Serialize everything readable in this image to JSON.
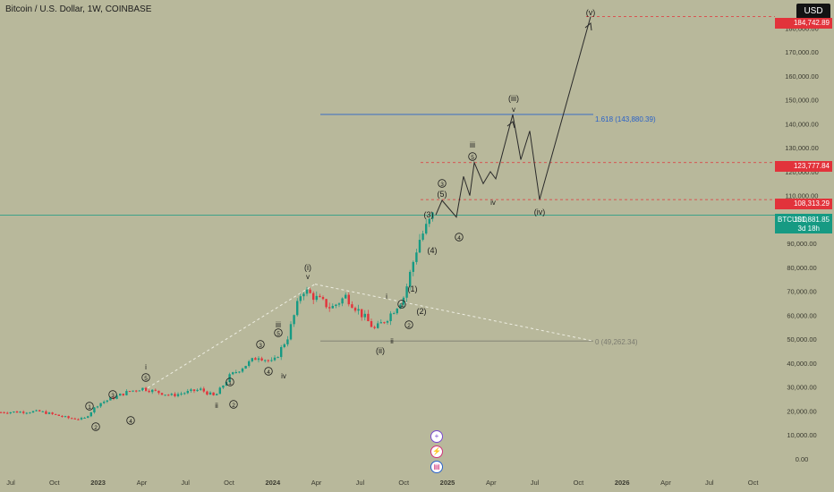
{
  "header": {
    "title": "Bitcoin / U.S. Dollar, 1W, COINBASE",
    "currency_button": "USD"
  },
  "chart_data": {
    "type": "line",
    "title": "Bitcoin / U.S. Dollar, 1W, COINBASE",
    "ylim": [
      0,
      190000
    ],
    "y_ticks": [
      "180,000.00",
      "170,000.00",
      "160,000.00",
      "150,000.00",
      "140,000.00",
      "130,000.00",
      "120,000.00",
      "110,000.00",
      "100,000.00",
      "90,000.00",
      "80,000.00",
      "70,000.00",
      "60,000.00",
      "50,000.00",
      "40,000.00",
      "30,000.00",
      "20,000.00",
      "10,000.00",
      "0.00"
    ],
    "x_ticks": [
      "Jul",
      "Oct",
      "2023",
      "Apr",
      "Jul",
      "Oct",
      "2024",
      "Apr",
      "Jul",
      "Oct",
      "2025",
      "Apr",
      "Jul",
      "Oct",
      "2026",
      "Apr",
      "Jul",
      "Oct"
    ],
    "price_series": [
      {
        "x": "2022-06",
        "y": 19500
      },
      {
        "x": "2022-09",
        "y": 19800
      },
      {
        "x": "2022-11",
        "y": 17000
      },
      {
        "x": "2022-12",
        "y": 16600
      },
      {
        "x": "2023-01",
        "y": 23000
      },
      {
        "x": "2023-03",
        "y": 28000
      },
      {
        "x": "2023-04",
        "y": 29500
      },
      {
        "x": "2023-06",
        "y": 26500
      },
      {
        "x": "2023-08",
        "y": 29000
      },
      {
        "x": "2023-09",
        "y": 26000
      },
      {
        "x": "2023-10",
        "y": 34500
      },
      {
        "x": "2023-12",
        "y": 43000
      },
      {
        "x": "2024-01",
        "y": 40000
      },
      {
        "x": "2024-02",
        "y": 51000
      },
      {
        "x": "2024-03",
        "y": 71000
      },
      {
        "x": "2024-05",
        "y": 63000
      },
      {
        "x": "2024-06",
        "y": 68000
      },
      {
        "x": "2024-08",
        "y": 54000
      },
      {
        "x": "2024-09",
        "y": 60000
      },
      {
        "x": "2024-10",
        "y": 68000
      },
      {
        "x": "2024-11",
        "y": 91000
      },
      {
        "x": "2024-12",
        "y": 101881.85
      }
    ],
    "projection_path": [
      {
        "x": "2024-12",
        "y": 101881.85
      },
      {
        "x": "2025-01",
        "y": 108000
      },
      {
        "x": "2025-01",
        "y": 101000
      },
      {
        "x": "2025-02",
        "y": 118000
      },
      {
        "x": "2025-02",
        "y": 110000
      },
      {
        "x": "2025-03",
        "y": 123777.84
      },
      {
        "x": "2025-03",
        "y": 115000
      },
      {
        "x": "2025-04",
        "y": 120000
      },
      {
        "x": "2025-04",
        "y": 117000
      },
      {
        "x": "2025-05",
        "y": 143880
      },
      {
        "x": "2025-05",
        "y": 125000
      },
      {
        "x": "2025-06",
        "y": 137000
      },
      {
        "x": "2025-06",
        "y": 108313.29
      },
      {
        "x": "2025-10",
        "y": 184742.89
      }
    ],
    "wave_labels": [
      {
        "text": "(v)",
        "x": "2025-10",
        "y": 184742.89
      },
      {
        "text": "(iii)",
        "x": "2025-05",
        "y": 143880
      },
      {
        "text": "v",
        "x": "2025-05",
        "y": 143880
      },
      {
        "text": "(iv)",
        "x": "2025-06",
        "y": 108313.29
      },
      {
        "text": "iii",
        "x": "2025-03",
        "y": 123777.84
      },
      {
        "text": "5",
        "x": "2025-03",
        "y": 123777.84
      },
      {
        "text": "iv",
        "x": "2025-04",
        "y": 110000
      },
      {
        "text": "4",
        "x": "2025-01",
        "y": 101000
      },
      {
        "text": "3",
        "x": "2024-12",
        "y": 108000
      },
      {
        "text": "(5)",
        "x": "2024-12",
        "y": 108000
      },
      {
        "text": "(3)",
        "x": "2024-11",
        "y": 98000
      },
      {
        "text": "(4)",
        "x": "2024-11",
        "y": 88000
      },
      {
        "text": "(1)",
        "x": "2024-10",
        "y": 70000
      },
      {
        "text": "(2)",
        "x": "2024-10",
        "y": 62000
      },
      {
        "text": "1",
        "x": "2024-09",
        "y": 67000
      },
      {
        "text": "i",
        "x": "2024-09",
        "y": 68000
      },
      {
        "text": "2",
        "x": "2024-09",
        "y": 56000
      },
      {
        "text": "ii",
        "x": "2024-08",
        "y": 50000
      },
      {
        "text": "(ii)",
        "x": "2024-08",
        "y": 49262
      },
      {
        "text": "(i)",
        "x": "2024-03",
        "y": 73000
      },
      {
        "text": "v",
        "x": "2024-03",
        "y": 73000
      },
      {
        "text": "iii",
        "x": "2023-12",
        "y": 58000
      },
      {
        "text": "5",
        "x": "2023-12",
        "y": 52000
      },
      {
        "text": "3",
        "x": "2023-11",
        "y": 46000
      },
      {
        "text": "4",
        "x": "2023-11",
        "y": 38000
      },
      {
        "text": "iv",
        "x": "2024-01",
        "y": 34000
      },
      {
        "text": "1",
        "x": "2023-10",
        "y": 31000
      },
      {
        "text": "ii",
        "x": "2023-09",
        "y": 22000
      },
      {
        "text": "2",
        "x": "2023-10",
        "y": 22000
      },
      {
        "text": "i",
        "x": "2023-03",
        "y": 37000
      },
      {
        "text": "5",
        "x": "2023-03",
        "y": 32000
      },
      {
        "text": "3",
        "x": "2023-01",
        "y": 25000
      },
      {
        "text": "4",
        "x": "2023-02",
        "y": 16000
      },
      {
        "text": "1",
        "x": "2022-11",
        "y": 21000
      },
      {
        "text": "2",
        "x": "2022-12",
        "y": 12000
      }
    ],
    "levels": [
      {
        "label": "184,742.89",
        "value": 184742.89,
        "color": "#e2333b",
        "style": "dashed"
      },
      {
        "label": "123,777.84",
        "value": 123777.84,
        "color": "#e2333b",
        "style": "dashed"
      },
      {
        "label": "108,313.29",
        "value": 108313.29,
        "color": "#e2333b",
        "style": "dashed"
      },
      {
        "label": "101,881.85",
        "value": 101881.85,
        "color": "#169a83",
        "style": "solid"
      }
    ],
    "fib_levels": [
      {
        "label": "1.618 (143,880.39)",
        "value": 143880.39,
        "color": "#2a62c9"
      },
      {
        "label": "0 (49,262.34)",
        "value": 49262.34,
        "color": "#7c7c70"
      }
    ],
    "current": {
      "symbol": "BTCUSD",
      "price": "101,881.85",
      "countdown": "3d 18h"
    },
    "colors": {
      "up": "#169a83",
      "down": "#e2333b",
      "projection": "#2a2a2a",
      "trend": "#eeeee2"
    }
  }
}
